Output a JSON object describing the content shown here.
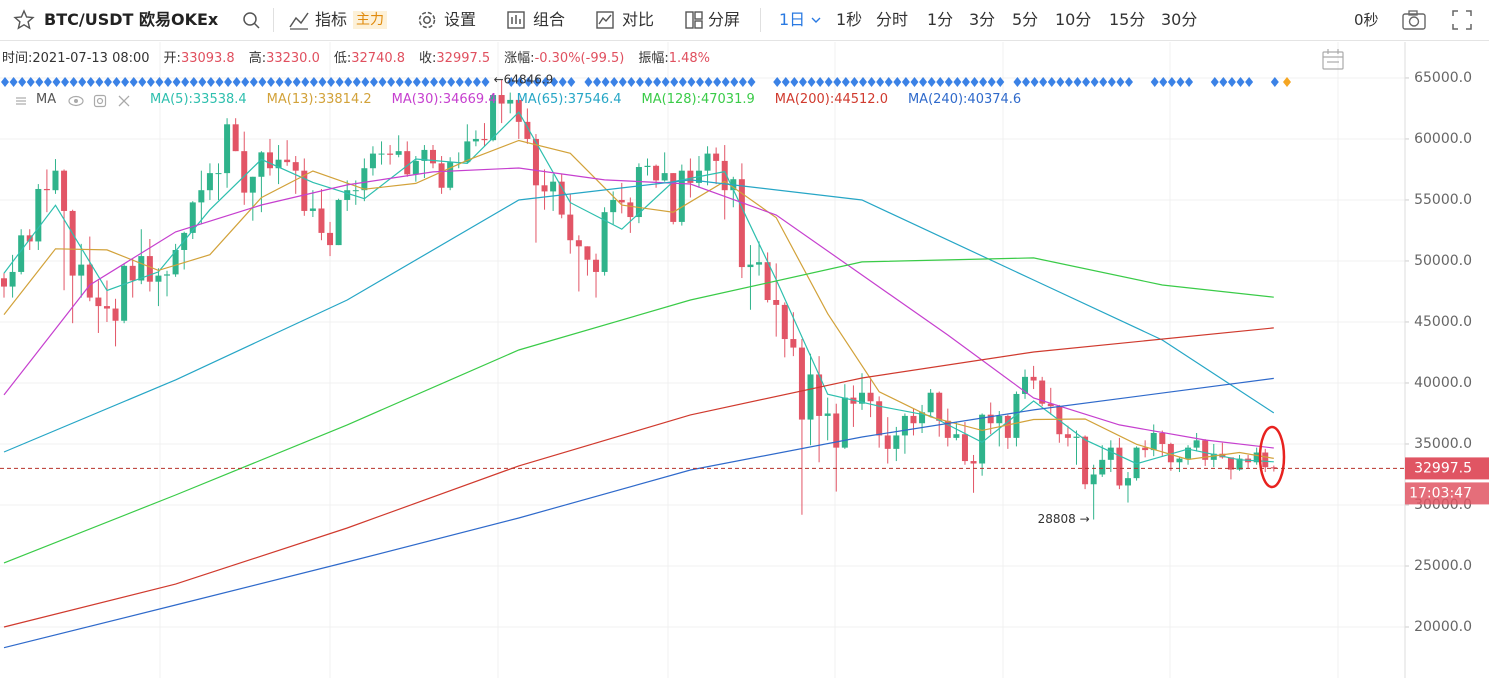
{
  "toolbar": {
    "symbol": "BTC/USDT 欧易OKEx",
    "indicators": "指标",
    "badge": "主力",
    "settings": "设置",
    "combine": "组合",
    "compare": "对比",
    "split": "分屏",
    "intervals": [
      "1日",
      "1秒",
      "分时",
      "1分",
      "3分",
      "5分",
      "10分",
      "15分",
      "30分"
    ],
    "refresh": "0秒"
  },
  "info": [
    {
      "label": "时间:",
      "value": "2021-07-13 08:00"
    },
    {
      "label": "开:",
      "value": "33093.8"
    },
    {
      "label": "高:",
      "value": "33230.0"
    },
    {
      "label": "低:",
      "value": "32740.8"
    },
    {
      "label": "收:",
      "value": "32997.5"
    },
    {
      "label": "涨幅:",
      "value": "-0.30%(-99.5)"
    },
    {
      "label": "振幅:",
      "value": "1.48%"
    }
  ],
  "chart_data": {
    "type": "candlestick",
    "ma_label": "MA",
    "up_color": "#2fb38b",
    "down_color": "#e25566",
    "ohlc": [
      [
        48580,
        49000,
        47000,
        47900
      ],
      [
        47900,
        50500,
        47000,
        49100
      ],
      [
        49100,
        52600,
        48900,
        52100
      ],
      [
        52100,
        52600,
        50900,
        51600
      ],
      [
        51600,
        56300,
        50900,
        55900
      ],
      [
        55900,
        57500,
        54000,
        55800
      ],
      [
        55800,
        58350,
        55500,
        57400
      ],
      [
        57400,
        57500,
        47600,
        54100
      ],
      [
        54100,
        54200,
        44900,
        48800
      ],
      [
        48800,
        51400,
        47000,
        49700
      ],
      [
        49700,
        52000,
        46700,
        47000
      ],
      [
        47000,
        48400,
        44100,
        46300
      ],
      [
        46300,
        48400,
        45000,
        46100
      ],
      [
        46100,
        46900,
        43000,
        45100
      ],
      [
        45100,
        49800,
        44900,
        49600
      ],
      [
        49600,
        50200,
        47000,
        48400
      ],
      [
        48400,
        52600,
        48100,
        50400
      ],
      [
        50400,
        51800,
        47500,
        48300
      ],
      [
        48300,
        49400,
        46300,
        48800
      ],
      [
        48800,
        49200,
        47100,
        48900
      ],
      [
        48900,
        51400,
        48700,
        50900
      ],
      [
        50900,
        52400,
        49300,
        52300
      ],
      [
        52300,
        54900,
        51800,
        54800
      ],
      [
        54800,
        57400,
        53000,
        55800
      ],
      [
        55800,
        58000,
        55000,
        57200
      ],
      [
        57200,
        58000,
        55000,
        57200
      ],
      [
        57200,
        61700,
        56000,
        61200
      ],
      [
        61200,
        61700,
        59000,
        59000
      ],
      [
        59000,
        60600,
        54600,
        55600
      ],
      [
        55600,
        56900,
        53300,
        56900
      ],
      [
        56900,
        59000,
        54000,
        58900
      ],
      [
        58900,
        60000,
        57000,
        57600
      ],
      [
        57600,
        59500,
        56300,
        58300
      ],
      [
        58300,
        59900,
        57800,
        58100
      ],
      [
        58100,
        58600,
        55500,
        57400
      ],
      [
        57400,
        58400,
        53700,
        54100
      ],
      [
        54100,
        55800,
        53600,
        54300
      ],
      [
        54300,
        55900,
        51700,
        52300
      ],
      [
        52300,
        53200,
        50400,
        51300
      ],
      [
        51300,
        55100,
        51300,
        55000
      ],
      [
        55000,
        56600,
        54100,
        55800
      ],
      [
        55800,
        56600,
        54600,
        55800
      ],
      [
        55800,
        58400,
        54900,
        57600
      ],
      [
        57600,
        59400,
        57000,
        58800
      ],
      [
        58800,
        59800,
        57900,
        58800
      ],
      [
        58800,
        59500,
        57900,
        58700
      ],
      [
        58700,
        60300,
        58500,
        59000
      ],
      [
        59000,
        59800,
        56900,
        57100
      ],
      [
        57100,
        58600,
        56500,
        58200
      ],
      [
        58200,
        59500,
        56800,
        59100
      ],
      [
        59100,
        59500,
        57600,
        58000
      ],
      [
        58000,
        58600,
        55500,
        56000
      ],
      [
        56000,
        58500,
        55800,
        58100
      ],
      [
        58100,
        58900,
        57600,
        58100
      ],
      [
        58100,
        61200,
        58000,
        59800
      ],
      [
        59800,
        60700,
        59400,
        60000
      ],
      [
        60000,
        61300,
        59400,
        59900
      ],
      [
        59900,
        63700,
        59800,
        63600
      ],
      [
        63600,
        64846.9,
        61300,
        62900
      ],
      [
        62900,
        63800,
        62100,
        63200
      ],
      [
        63200,
        63500,
        60000,
        61400
      ],
      [
        61400,
        62500,
        59600,
        60000
      ],
      [
        60000,
        60400,
        51500,
        56200
      ],
      [
        56200,
        57500,
        54200,
        55700
      ],
      [
        55700,
        57100,
        54100,
        56500
      ],
      [
        56500,
        57100,
        53500,
        53800
      ],
      [
        53800,
        55500,
        50600,
        51700
      ],
      [
        51700,
        52100,
        47500,
        51200
      ],
      [
        51200,
        51200,
        48800,
        50100
      ],
      [
        50100,
        50600,
        47000,
        49100
      ],
      [
        49100,
        54400,
        48800,
        54000
      ],
      [
        54000,
        55700,
        53000,
        55000
      ],
      [
        55000,
        56400,
        53900,
        54800
      ],
      [
        54800,
        55200,
        52300,
        53600
      ],
      [
        53600,
        58000,
        53100,
        57700
      ],
      [
        57700,
        58400,
        57000,
        57800
      ],
      [
        57800,
        57900,
        56000,
        56600
      ],
      [
        56600,
        58900,
        56500,
        57200
      ],
      [
        57200,
        57200,
        53000,
        53200
      ],
      [
        53200,
        57900,
        52900,
        57400
      ],
      [
        57400,
        58400,
        55200,
        56400
      ],
      [
        56400,
        58600,
        56000,
        57400
      ],
      [
        57400,
        59400,
        56200,
        58800
      ],
      [
        58800,
        59300,
        56300,
        58200
      ],
      [
        58200,
        59500,
        53400,
        55800
      ],
      [
        55800,
        56900,
        54400,
        56700
      ],
      [
        56700,
        58000,
        48600,
        49500
      ],
      [
        49500,
        51300,
        46000,
        49700
      ],
      [
        49700,
        51600,
        48800,
        49900
      ],
      [
        49900,
        50700,
        46600,
        46800
      ],
      [
        46800,
        49800,
        43800,
        46400
      ],
      [
        46400,
        46600,
        42100,
        43600
      ],
      [
        43600,
        45800,
        42200,
        42900
      ],
      [
        42900,
        43600,
        29200,
        37000
      ],
      [
        37000,
        42400,
        34900,
        40700
      ],
      [
        40700,
        42200,
        33500,
        37300
      ],
      [
        37300,
        38800,
        35300,
        37500
      ],
      [
        37500,
        38300,
        31100,
        34700
      ],
      [
        34700,
        39900,
        34600,
        38800
      ],
      [
        38800,
        39800,
        36400,
        38300
      ],
      [
        38300,
        40800,
        37800,
        39200
      ],
      [
        39200,
        40400,
        37200,
        38500
      ],
      [
        38500,
        38900,
        34700,
        35700
      ],
      [
        35700,
        37200,
        33400,
        34600
      ],
      [
        34600,
        36400,
        33600,
        35700
      ],
      [
        35700,
        37500,
        34200,
        37300
      ],
      [
        37300,
        37900,
        35700,
        36700
      ],
      [
        36700,
        38200,
        35900,
        37600
      ],
      [
        37600,
        39500,
        37200,
        39200
      ],
      [
        39200,
        39300,
        35600,
        36900
      ],
      [
        36900,
        37900,
        34800,
        35500
      ],
      [
        35500,
        36800,
        35300,
        35800
      ],
      [
        35800,
        36800,
        33300,
        33600
      ],
      [
        33600,
        34100,
        31000,
        33400
      ],
      [
        33400,
        37500,
        32400,
        37400
      ],
      [
        37400,
        38400,
        35800,
        36700
      ],
      [
        36700,
        37700,
        34800,
        37300
      ],
      [
        37300,
        37400,
        34600,
        35500
      ],
      [
        35500,
        39300,
        34800,
        39100
      ],
      [
        39100,
        41100,
        38700,
        40500
      ],
      [
        40500,
        41400,
        39500,
        40200
      ],
      [
        40200,
        40500,
        38100,
        38300
      ],
      [
        38300,
        39600,
        37400,
        38100
      ],
      [
        38100,
        38200,
        35100,
        35800
      ],
      [
        35800,
        36500,
        34800,
        35500
      ],
      [
        35500,
        36100,
        33300,
        35600
      ],
      [
        35600,
        35700,
        31300,
        31700
      ],
      [
        31700,
        33300,
        28808,
        32500
      ],
      [
        32500,
        34900,
        32300,
        33700
      ],
      [
        33700,
        35300,
        32700,
        34700
      ],
      [
        34700,
        35500,
        31300,
        31600
      ],
      [
        31600,
        32700,
        30200,
        32200
      ],
      [
        32200,
        34800,
        32000,
        34700
      ],
      [
        34700,
        35300,
        33900,
        34500
      ],
      [
        34500,
        36600,
        34000,
        35900
      ],
      [
        35900,
        36100,
        34000,
        35000
      ],
      [
        35000,
        35100,
        32800,
        33500
      ],
      [
        33500,
        33900,
        32700,
        33800
      ],
      [
        33800,
        34900,
        33300,
        34700
      ],
      [
        34700,
        35900,
        34400,
        35300
      ],
      [
        35300,
        35400,
        33200,
        33700
      ],
      [
        33700,
        35000,
        33100,
        34200
      ],
      [
        34200,
        35100,
        33800,
        33900
      ],
      [
        33900,
        33900,
        32100,
        32900
      ],
      [
        32900,
        34100,
        32800,
        33800
      ],
      [
        33800,
        34100,
        33000,
        33500
      ],
      [
        33500,
        34700,
        33300,
        34300
      ],
      [
        34300,
        34600,
        32700,
        33097
      ],
      [
        33093.8,
        33230,
        32740.8,
        32997.5
      ]
    ],
    "series": [
      {
        "name": "MA(5):",
        "current": "33538.4",
        "color": "#2ebfae",
        "x": [
          0,
          6,
          12,
          18,
          24,
          30,
          36,
          42,
          48,
          54,
          60,
          66,
          72,
          78,
          84,
          90,
          96,
          102,
          108,
          114,
          120,
          126,
          132,
          138,
          144,
          148
        ],
        "values": [
          49000,
          54560,
          47580,
          49100,
          54200,
          58320,
          56440,
          55100,
          58360,
          58000,
          62200,
          54780,
          52600,
          56500,
          57320,
          48460,
          39080,
          38100,
          37300,
          35140,
          38520,
          35340,
          33380,
          34580,
          33700,
          33538.4
        ]
      },
      {
        "name": "MA(13):",
        "current": "33814.2",
        "color": "#d2a23a",
        "x": [
          0,
          6,
          12,
          18,
          24,
          30,
          36,
          42,
          48,
          54,
          60,
          66,
          72,
          78,
          84,
          90,
          96,
          102,
          108,
          114,
          120,
          126,
          132,
          138,
          144,
          148
        ],
        "values": [
          45600,
          51000,
          50910,
          49230,
          50510,
          55190,
          57370,
          55880,
          56360,
          58250,
          59870,
          58820,
          54580,
          54000,
          56530,
          53550,
          45680,
          39280,
          37220,
          36110,
          37010,
          37050,
          34970,
          33730,
          34300,
          33814.2
        ]
      },
      {
        "name": "MA(30):",
        "current": "34669.4",
        "color": "#c640cf",
        "x": [
          0,
          10,
          20,
          30,
          40,
          50,
          60,
          70,
          80,
          90,
          100,
          110,
          120,
          130,
          140,
          148
        ],
        "values": [
          39020,
          48030,
          52380,
          54590,
          56230,
          57300,
          57620,
          56640,
          56310,
          53770,
          48850,
          43930,
          38770,
          36560,
          35330,
          34669.4
        ]
      },
      {
        "name": "MA(65):",
        "current": "37546.4",
        "color": "#26a6c6",
        "x": [
          0,
          20,
          40,
          60,
          80,
          100,
          120,
          135,
          148
        ],
        "values": [
          34340,
          40250,
          46800,
          55000,
          56640,
          55000,
          48440,
          43520,
          37546.4
        ]
      },
      {
        "name": "MA(128):",
        "current": "47031.9",
        "color": "#3acb48",
        "x": [
          0,
          20,
          40,
          60,
          80,
          100,
          120,
          135,
          148
        ],
        "values": [
          25250,
          30820,
          36560,
          42700,
          46800,
          49920,
          50250,
          48030,
          47031.9
        ]
      },
      {
        "name": "MA(200):",
        "current": "44512.0",
        "color": "#d03a2e",
        "x": [
          0,
          20,
          40,
          60,
          80,
          100,
          120,
          148
        ],
        "values": [
          20000,
          23520,
          28110,
          33200,
          37380,
          40410,
          42540,
          44512
        ]
      },
      {
        "name": "MA(240):",
        "current": "40374.6",
        "color": "#2f6acb",
        "x": [
          0,
          20,
          40,
          60,
          80,
          100,
          120,
          148
        ],
        "values": [
          18300,
          21800,
          25330,
          28930,
          32870,
          35570,
          37790,
          40374.6
        ]
      }
    ],
    "ylim": [
      15820,
      67700
    ],
    "yticks": [
      {
        "value": 20000,
        "label": "20000.0"
      },
      {
        "value": 25000,
        "label": "25000.0"
      },
      {
        "value": 30000,
        "label": "30000.0"
      },
      {
        "value": 35000,
        "label": "35000.0"
      },
      {
        "value": 40000,
        "label": "40000.0"
      },
      {
        "value": 45000,
        "label": "45000.0"
      },
      {
        "value": 50000,
        "label": "50000.0"
      },
      {
        "value": 55000,
        "label": "55000.0"
      },
      {
        "value": 60000,
        "label": "60000.0"
      },
      {
        "value": 65000,
        "label": "65000.0"
      }
    ],
    "grid": true,
    "last_price": 32997.5,
    "last_price_color": "#e05563",
    "countdown": "17:03:47",
    "annotations": [
      {
        "text": "←64846.9",
        "value": 64846.9,
        "side": "high"
      },
      {
        "text": "28808 →",
        "value": 28808,
        "side": "low"
      }
    ]
  }
}
